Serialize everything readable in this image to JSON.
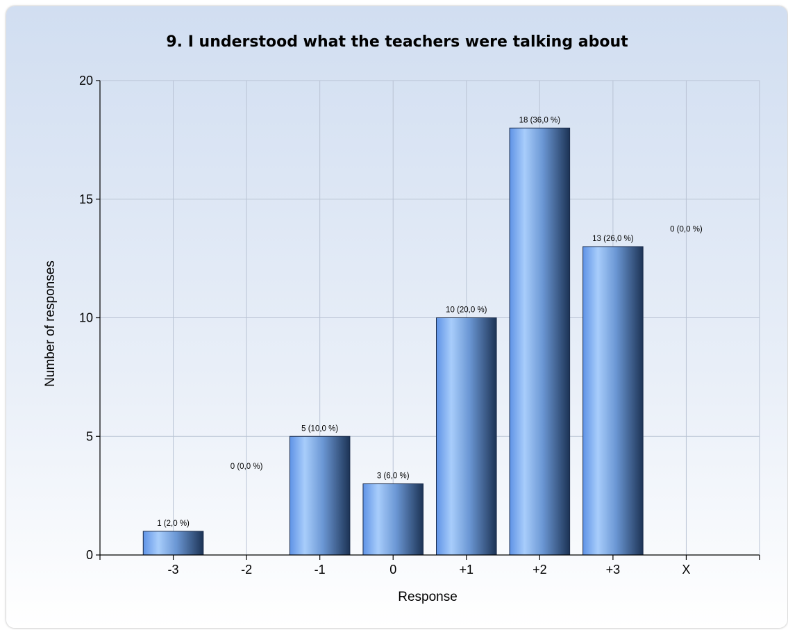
{
  "chart_data": {
    "type": "bar",
    "title": "9. I understood what the teachers were talking about",
    "xlabel": "Response",
    "ylabel": "Number of responses",
    "categories": [
      "-3",
      "-2",
      "-1",
      "0",
      "+1",
      "+2",
      "+3",
      "X"
    ],
    "values": [
      1,
      0,
      5,
      3,
      10,
      18,
      13,
      0
    ],
    "data_labels": [
      "1 (2,0 %)",
      "0 (0,0 %)",
      "5 (10,0 %)",
      "3 (6,0 %)",
      "10 (20,0 %)",
      "18 (36,0 %)",
      "13 (26,0 %)",
      "0 (0,0 %)"
    ],
    "ylim": [
      0,
      20
    ],
    "yticks": [
      0,
      5,
      10,
      15,
      20
    ],
    "grid": true,
    "legend": "none",
    "colors": {
      "bar_light": "#a8cdfb",
      "bar_mid": "#5f93e6",
      "bar_dark": "#1c3355"
    }
  }
}
